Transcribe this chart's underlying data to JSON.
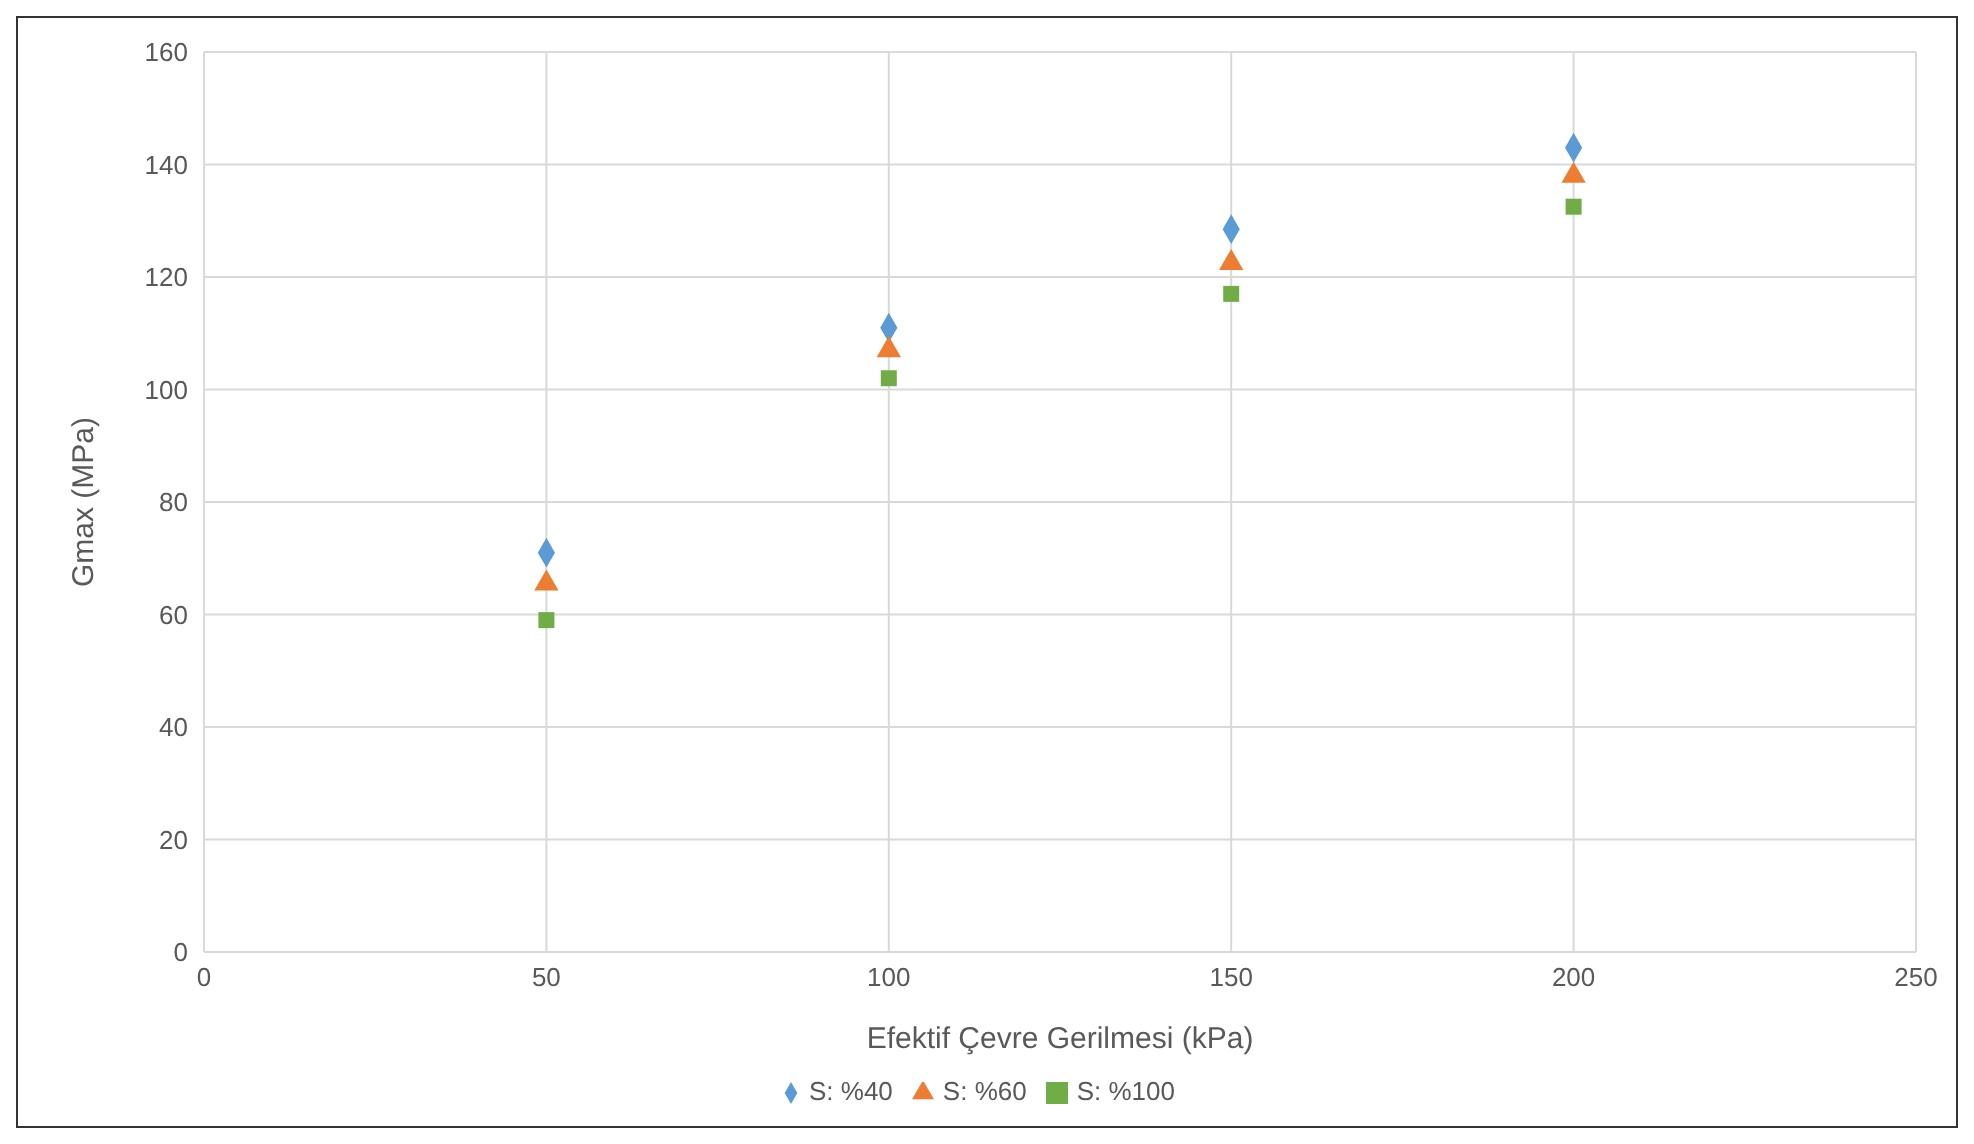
{
  "chart_data": {
    "type": "scatter",
    "xlabel": "Efektif Çevre Gerilmesi (kPa)",
    "ylabel": "Gmax (MPa)",
    "x": [
      50,
      100,
      150,
      200
    ],
    "series": [
      {
        "name": "S: %40",
        "color": "#5b9bd5",
        "marker": "diamond",
        "values": [
          71,
          111,
          128.5,
          143
        ]
      },
      {
        "name": "S: %60",
        "color": "#ed7d31",
        "marker": "triangle",
        "values": [
          65.5,
          107,
          122.5,
          138
        ]
      },
      {
        "name": "S: %100",
        "color": "#70ad47",
        "marker": "square",
        "values": [
          59,
          102,
          117,
          132.5
        ]
      }
    ],
    "xlim": [
      0,
      250
    ],
    "xticks": [
      0,
      50,
      100,
      150,
      200,
      250
    ],
    "ylim": [
      0,
      160
    ],
    "yticks": [
      0,
      20,
      40,
      60,
      80,
      100,
      120,
      140,
      160
    ],
    "grid": true,
    "legend": "bottom"
  }
}
